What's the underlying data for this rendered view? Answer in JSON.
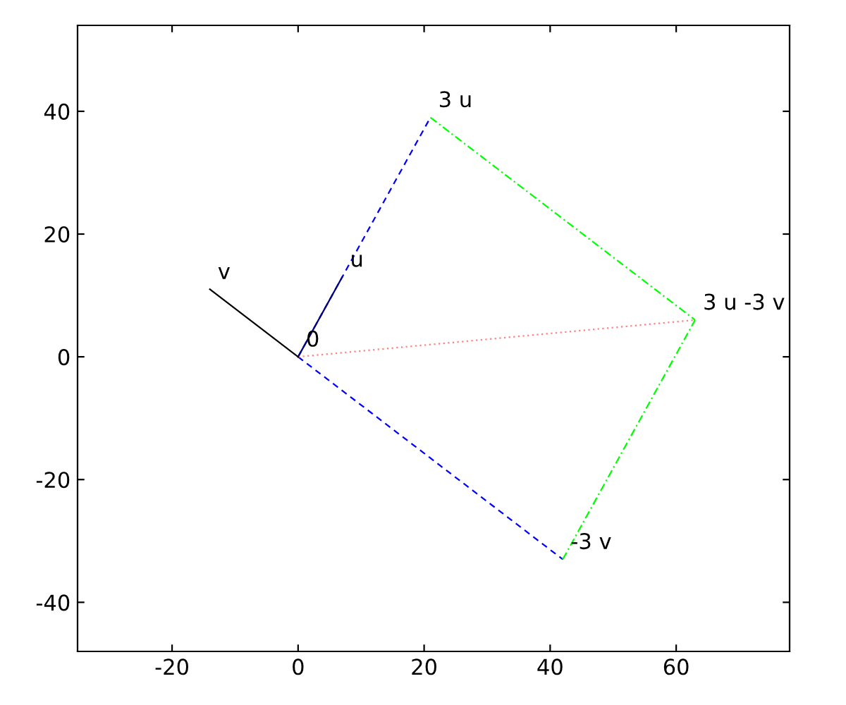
{
  "chart_data": {
    "type": "line",
    "series": [
      {
        "color": "#0000ff",
        "line_style": "dashed",
        "x": [
          0,
          21
        ],
        "values": [
          0,
          39
        ]
      },
      {
        "color": "#0000ff",
        "line_style": "dashed",
        "x": [
          0,
          42
        ],
        "values": [
          0,
          -33
        ]
      },
      {
        "color": "#00ff00",
        "line_style": "dashdot",
        "x": [
          21,
          63
        ],
        "values": [
          39,
          6
        ]
      },
      {
        "color": "#00ff00",
        "line_style": "dashdot",
        "x": [
          42,
          63
        ],
        "values": [
          -33,
          6
        ]
      },
      {
        "color": "#ff8080",
        "line_style": "dotted",
        "x": [
          0,
          63
        ],
        "values": [
          0,
          6
        ]
      },
      {
        "color": "#000080",
        "line_style": "solid",
        "x": [
          0,
          7
        ],
        "values": [
          0,
          13
        ]
      },
      {
        "color": "#000000",
        "line_style": "solid",
        "x": [
          0,
          -14
        ],
        "values": [
          0,
          11
        ]
      }
    ],
    "annotations": [
      {
        "text": "3 u",
        "x": 21,
        "y": 39
      },
      {
        "text": "u",
        "x": 7,
        "y": 13
      },
      {
        "text": "v",
        "x": -14,
        "y": 11
      },
      {
        "text": "0",
        "x": 0,
        "y": 0
      },
      {
        "text": "-3 v",
        "x": 42,
        "y": -33
      },
      {
        "text": "3 u -3 v",
        "x": 63,
        "y": 6
      }
    ],
    "xlim": [
      -35,
      78
    ],
    "ylim": [
      -48,
      54
    ],
    "xticks": [
      -20,
      0,
      20,
      40,
      60
    ],
    "yticks": [
      -40,
      -20,
      0,
      20,
      40
    ],
    "grid": false,
    "legend": false
  }
}
